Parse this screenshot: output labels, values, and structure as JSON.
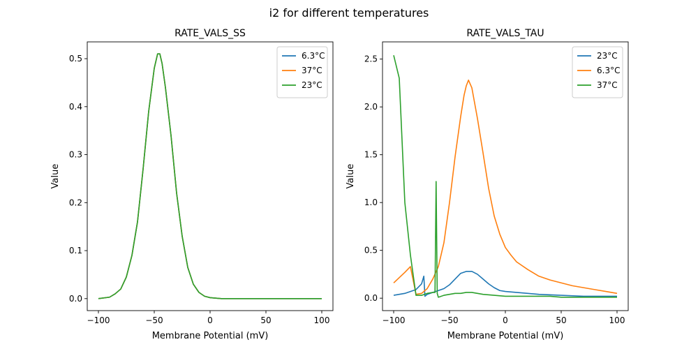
{
  "figure": {
    "suptitle": "i2 for different temperatures"
  },
  "colors": {
    "blue": "#1f77b4",
    "orange": "#ff7f0e",
    "green": "#2ca02c"
  },
  "chart_data": [
    {
      "type": "line",
      "title": "RATE_VALS_SS",
      "xlabel": "Membrane Potential (mV)",
      "ylabel": "Value",
      "xlim": [
        -110,
        110
      ],
      "ylim": [
        -0.025,
        0.535
      ],
      "xticks": [
        -100,
        -50,
        0,
        50,
        100
      ],
      "xtick_labels": [
        "−100",
        "−50",
        "0",
        "50",
        "100"
      ],
      "yticks": [
        0.0,
        0.1,
        0.2,
        0.3,
        0.4,
        0.5
      ],
      "ytick_labels": [
        "0.0",
        "0.1",
        "0.2",
        "0.3",
        "0.4",
        "0.5"
      ],
      "legend_position": "top-right",
      "series": [
        {
          "name": "6.3°C",
          "color": "#1f77b4",
          "x": [
            -100,
            -90,
            -85,
            -80,
            -75,
            -70,
            -65,
            -60,
            -55,
            -50,
            -47,
            -45,
            -43,
            -40,
            -35,
            -30,
            -25,
            -20,
            -15,
            -10,
            -5,
            0,
            10,
            20,
            50,
            100
          ],
          "y": [
            0.0,
            0.003,
            0.01,
            0.02,
            0.045,
            0.09,
            0.16,
            0.27,
            0.39,
            0.48,
            0.51,
            0.51,
            0.49,
            0.44,
            0.34,
            0.22,
            0.13,
            0.065,
            0.03,
            0.013,
            0.005,
            0.002,
            0.0,
            0.0,
            0.0,
            0.0
          ]
        },
        {
          "name": "37°C",
          "color": "#ff7f0e",
          "x": [
            -100,
            -90,
            -85,
            -80,
            -75,
            -70,
            -65,
            -60,
            -55,
            -50,
            -47,
            -45,
            -43,
            -40,
            -35,
            -30,
            -25,
            -20,
            -15,
            -10,
            -5,
            0,
            10,
            20,
            50,
            100
          ],
          "y": [
            0.0,
            0.003,
            0.01,
            0.02,
            0.045,
            0.09,
            0.16,
            0.27,
            0.39,
            0.48,
            0.51,
            0.51,
            0.49,
            0.44,
            0.34,
            0.22,
            0.13,
            0.065,
            0.03,
            0.013,
            0.005,
            0.002,
            0.0,
            0.0,
            0.0,
            0.0
          ]
        },
        {
          "name": "23°C",
          "color": "#2ca02c",
          "x": [
            -100,
            -90,
            -85,
            -80,
            -75,
            -70,
            -65,
            -60,
            -55,
            -50,
            -47,
            -45,
            -43,
            -40,
            -35,
            -30,
            -25,
            -20,
            -15,
            -10,
            -5,
            0,
            10,
            20,
            50,
            100
          ],
          "y": [
            0.0,
            0.003,
            0.01,
            0.02,
            0.045,
            0.09,
            0.16,
            0.27,
            0.39,
            0.48,
            0.51,
            0.51,
            0.49,
            0.44,
            0.34,
            0.22,
            0.13,
            0.065,
            0.03,
            0.013,
            0.005,
            0.002,
            0.0,
            0.0,
            0.0,
            0.0
          ]
        }
      ]
    },
    {
      "type": "line",
      "title": "RATE_VALS_TAU",
      "xlabel": "Membrane Potential (mV)",
      "ylabel": "Value",
      "xlim": [
        -110,
        110
      ],
      "ylim": [
        -0.13,
        2.68
      ],
      "xticks": [
        -100,
        -50,
        0,
        50,
        100
      ],
      "xtick_labels": [
        "−100",
        "−50",
        "0",
        "50",
        "100"
      ],
      "yticks": [
        0.0,
        0.5,
        1.0,
        1.5,
        2.0,
        2.5
      ],
      "ytick_labels": [
        "0.0",
        "0.5",
        "1.0",
        "1.5",
        "2.0",
        "2.5"
      ],
      "legend_position": "top-right",
      "series": [
        {
          "name": "23°C",
          "color": "#1f77b4",
          "x": [
            -100,
            -90,
            -80,
            -75,
            -73,
            -72,
            -70,
            -65,
            -60,
            -55,
            -50,
            -45,
            -40,
            -35,
            -30,
            -25,
            -20,
            -15,
            -10,
            -5,
            0,
            10,
            20,
            30,
            50,
            70,
            100
          ],
          "y": [
            0.03,
            0.05,
            0.09,
            0.15,
            0.23,
            0.02,
            0.04,
            0.06,
            0.08,
            0.1,
            0.14,
            0.2,
            0.26,
            0.28,
            0.28,
            0.25,
            0.2,
            0.15,
            0.11,
            0.08,
            0.07,
            0.06,
            0.05,
            0.04,
            0.03,
            0.02,
            0.02
          ]
        },
        {
          "name": "6.3°C",
          "color": "#ff7f0e",
          "x": [
            -100,
            -90,
            -85,
            -80,
            -75,
            -70,
            -65,
            -60,
            -55,
            -50,
            -45,
            -40,
            -37,
            -35,
            -33,
            -30,
            -25,
            -20,
            -15,
            -10,
            -5,
            0,
            5,
            10,
            20,
            30,
            40,
            50,
            60,
            70,
            80,
            90,
            100
          ],
          "y": [
            0.16,
            0.27,
            0.33,
            0.04,
            0.05,
            0.1,
            0.2,
            0.33,
            0.58,
            1.0,
            1.48,
            1.9,
            2.12,
            2.22,
            2.28,
            2.2,
            1.88,
            1.52,
            1.15,
            0.86,
            0.67,
            0.53,
            0.45,
            0.38,
            0.3,
            0.23,
            0.19,
            0.16,
            0.13,
            0.11,
            0.09,
            0.07,
            0.05
          ]
        },
        {
          "name": "37°C",
          "color": "#2ca02c",
          "x": [
            -100,
            -95,
            -90,
            -85,
            -80,
            -75,
            -70,
            -65,
            -63,
            -62,
            -61,
            -60,
            -55,
            -50,
            -45,
            -40,
            -35,
            -30,
            -25,
            -20,
            -10,
            0,
            10,
            20,
            40,
            50,
            60,
            80,
            100
          ],
          "y": [
            2.54,
            2.3,
            1.0,
            0.45,
            0.03,
            0.03,
            0.05,
            0.06,
            0.06,
            1.22,
            0.05,
            0.01,
            0.03,
            0.04,
            0.05,
            0.05,
            0.06,
            0.06,
            0.05,
            0.04,
            0.03,
            0.02,
            0.02,
            0.02,
            0.02,
            0.01,
            0.01,
            0.01,
            0.01
          ]
        }
      ]
    }
  ]
}
